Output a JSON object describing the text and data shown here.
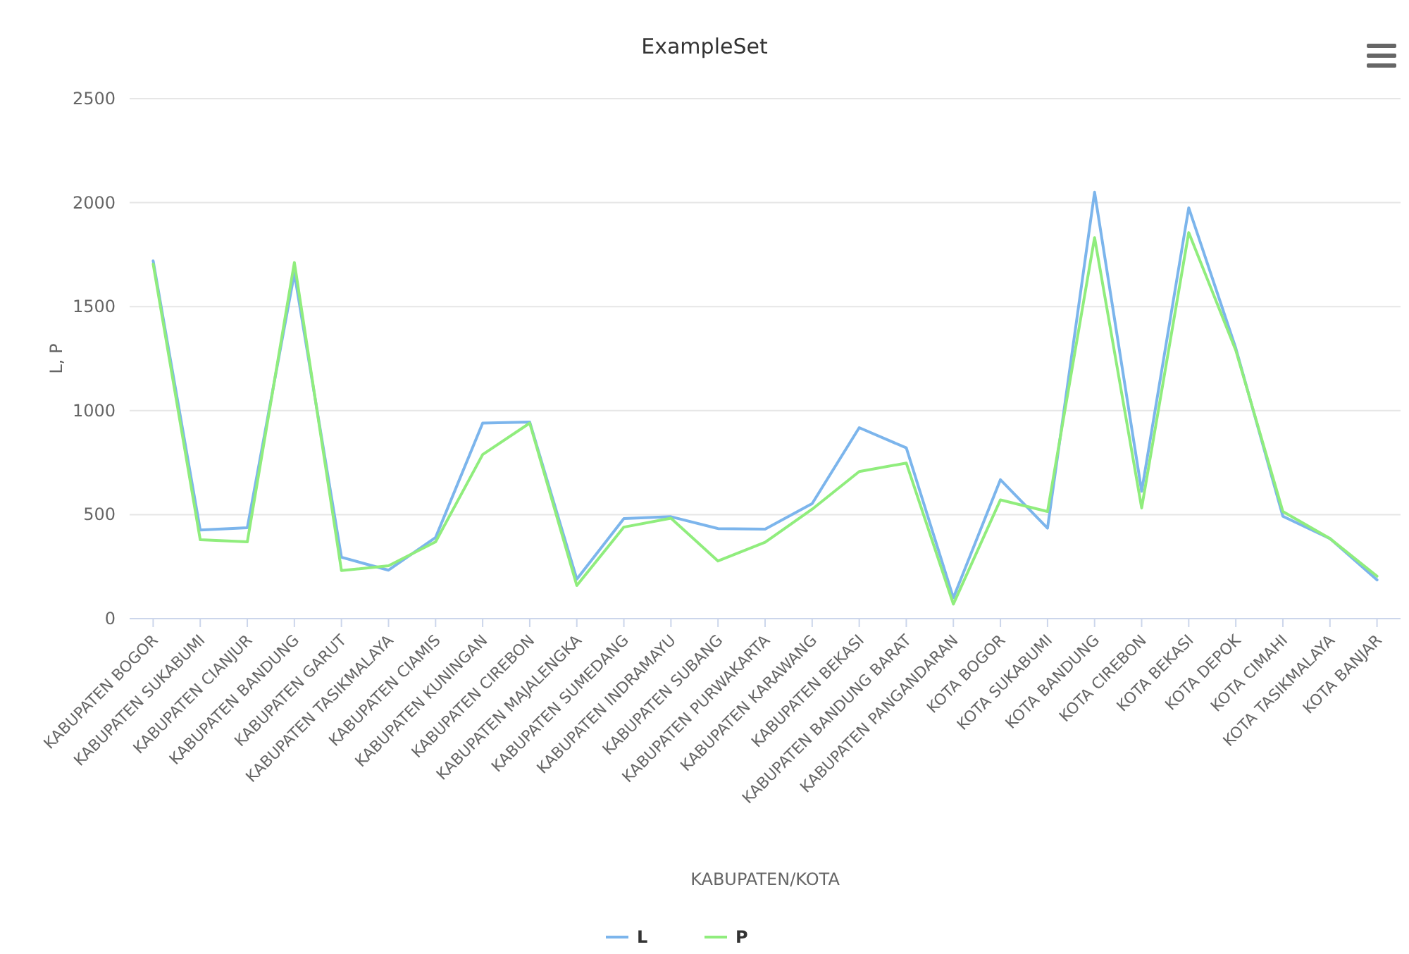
{
  "chart_data": {
    "type": "line",
    "title": "ExampleSet",
    "xlabel": "KABUPATEN/KOTA",
    "ylabel": "L, P",
    "categories": [
      "KABUPATEN BOGOR",
      "KABUPATEN SUKABUMI",
      "KABUPATEN CIANJUR",
      "KABUPATEN BANDUNG",
      "KABUPATEN GARUT",
      "KABUPATEN TASIKMALAYA",
      "KABUPATEN CIAMIS",
      "KABUPATEN KUNINGAN",
      "KABUPATEN CIREBON",
      "KABUPATEN MAJALENGKA",
      "KABUPATEN SUMEDANG",
      "KABUPATEN INDRAMAYU",
      "KABUPATEN SUBANG",
      "KABUPATEN PURWAKARTA",
      "KABUPATEN KARAWANG",
      "KABUPATEN BEKASI",
      "KABUPATEN BANDUNG BARAT",
      "KABUPATEN PANGANDARAN",
      "KOTA BOGOR",
      "KOTA SUKABUMI",
      "KOTA BANDUNG",
      "KOTA CIREBON",
      "KOTA BEKASI",
      "KOTA DEPOK",
      "KOTA CIMAHI",
      "KOTA TASIKMALAYA",
      "KOTA BANJAR"
    ],
    "series": [
      {
        "name": "L",
        "color": "#7cb5ec",
        "values": [
          1720,
          426,
          437,
          1660,
          295,
          233,
          390,
          940,
          945,
          190,
          481,
          490,
          433,
          430,
          553,
          918,
          821,
          100,
          668,
          435,
          2050,
          612,
          1975,
          1300,
          492,
          385,
          186
        ]
      },
      {
        "name": "P",
        "color": "#90ed7d",
        "values": [
          1705,
          379,
          369,
          1712,
          231,
          254,
          369,
          789,
          940,
          159,
          440,
          483,
          277,
          367,
          526,
          707,
          748,
          70,
          571,
          515,
          1832,
          532,
          1856,
          1290,
          515,
          385,
          204
        ]
      }
    ],
    "ylim": [
      0,
      2500
    ],
    "yticks": [
      0,
      500,
      1000,
      1500,
      2000,
      2500
    ],
    "grid": "y",
    "legend": "bottom",
    "marker": "none",
    "line_style": "solid"
  }
}
